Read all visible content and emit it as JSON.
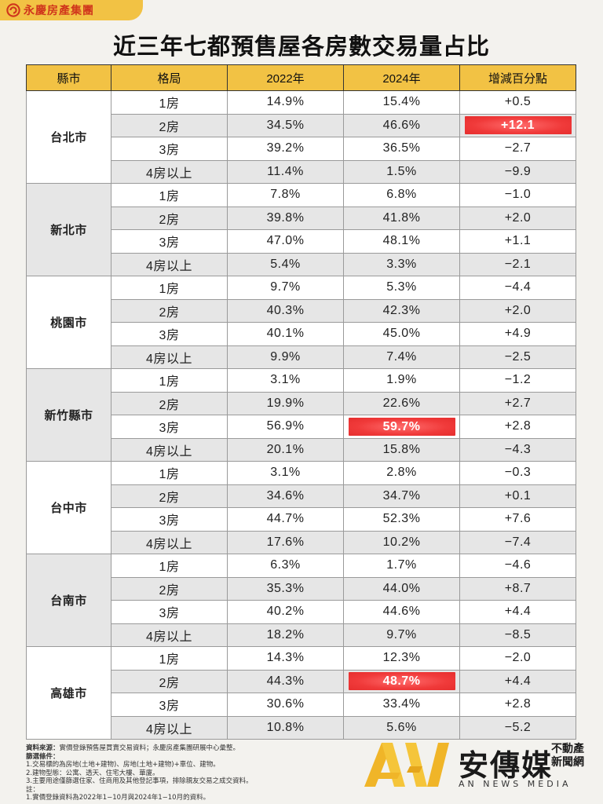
{
  "brand": {
    "name": "永慶房產集團"
  },
  "title": "近三年七都預售屋各房數交易量占比",
  "headers": [
    "縣市",
    "格局",
    "2022年",
    "2024年",
    "增減百分點"
  ],
  "colors": {
    "accent": "#f2c244",
    "highlight": "#f03a3a",
    "brand": "#d0361c"
  },
  "groups": [
    {
      "city": "台北市",
      "rows": [
        {
          "layout": "1房",
          "y2022": "14.9%",
          "y2024": "15.4%",
          "diff": "+0.5"
        },
        {
          "layout": "2房",
          "y2022": "34.5%",
          "y2024": "46.6%",
          "diff": "+12.1"
        },
        {
          "layout": "3房",
          "y2022": "39.2%",
          "y2024": "36.5%",
          "diff": "−2.7"
        },
        {
          "layout": "4房以上",
          "y2022": "11.4%",
          "y2024": "1.5%",
          "diff": "−9.9"
        }
      ]
    },
    {
      "city": "新北市",
      "rows": [
        {
          "layout": "1房",
          "y2022": "7.8%",
          "y2024": "6.8%",
          "diff": "−1.0"
        },
        {
          "layout": "2房",
          "y2022": "39.8%",
          "y2024": "41.8%",
          "diff": "+2.0"
        },
        {
          "layout": "3房",
          "y2022": "47.0%",
          "y2024": "48.1%",
          "diff": "+1.1"
        },
        {
          "layout": "4房以上",
          "y2022": "5.4%",
          "y2024": "3.3%",
          "diff": "−2.1"
        }
      ]
    },
    {
      "city": "桃園市",
      "rows": [
        {
          "layout": "1房",
          "y2022": "9.7%",
          "y2024": "5.3%",
          "diff": "−4.4"
        },
        {
          "layout": "2房",
          "y2022": "40.3%",
          "y2024": "42.3%",
          "diff": "+2.0"
        },
        {
          "layout": "3房",
          "y2022": "40.1%",
          "y2024": "45.0%",
          "diff": "+4.9"
        },
        {
          "layout": "4房以上",
          "y2022": "9.9%",
          "y2024": "7.4%",
          "diff": "−2.5"
        }
      ]
    },
    {
      "city": "新竹縣市",
      "rows": [
        {
          "layout": "1房",
          "y2022": "3.1%",
          "y2024": "1.9%",
          "diff": "−1.2"
        },
        {
          "layout": "2房",
          "y2022": "19.9%",
          "y2024": "22.6%",
          "diff": "+2.7"
        },
        {
          "layout": "3房",
          "y2022": "56.9%",
          "y2024": "59.7%",
          "diff": "+2.8"
        },
        {
          "layout": "4房以上",
          "y2022": "20.1%",
          "y2024": "15.8%",
          "diff": "−4.3"
        }
      ]
    },
    {
      "city": "台中市",
      "rows": [
        {
          "layout": "1房",
          "y2022": "3.1%",
          "y2024": "2.8%",
          "diff": "−0.3"
        },
        {
          "layout": "2房",
          "y2022": "34.6%",
          "y2024": "34.7%",
          "diff": "+0.1"
        },
        {
          "layout": "3房",
          "y2022": "44.7%",
          "y2024": "52.3%",
          "diff": "+7.6"
        },
        {
          "layout": "4房以上",
          "y2022": "17.6%",
          "y2024": "10.2%",
          "diff": "−7.4"
        }
      ]
    },
    {
      "city": "台南市",
      "rows": [
        {
          "layout": "1房",
          "y2022": "6.3%",
          "y2024": "1.7%",
          "diff": "−4.6"
        },
        {
          "layout": "2房",
          "y2022": "35.3%",
          "y2024": "44.0%",
          "diff": "+8.7"
        },
        {
          "layout": "3房",
          "y2022": "40.2%",
          "y2024": "44.6%",
          "diff": "+4.4"
        },
        {
          "layout": "4房以上",
          "y2022": "18.2%",
          "y2024": "9.7%",
          "diff": "−8.5"
        }
      ]
    },
    {
      "city": "高雄市",
      "rows": [
        {
          "layout": "1房",
          "y2022": "14.3%",
          "y2024": "12.3%",
          "diff": "−2.0"
        },
        {
          "layout": "2房",
          "y2022": "44.3%",
          "y2024": "48.7%",
          "diff": "+4.4"
        },
        {
          "layout": "3房",
          "y2022": "30.6%",
          "y2024": "33.4%",
          "diff": "+2.8"
        },
        {
          "layout": "4房以上",
          "y2022": "10.8%",
          "y2024": "5.6%",
          "diff": "−5.2"
        }
      ]
    }
  ],
  "highlights": [
    {
      "group": 0,
      "row": 1,
      "col": "diff"
    },
    {
      "group": 3,
      "row": 2,
      "col": "y2024"
    },
    {
      "group": 6,
      "row": 1,
      "col": "y2024"
    }
  ],
  "footnotes": {
    "source_label": "資料來源：",
    "source_text": "實價登錄預售屋買賣交易資料；永慶房產集團研展中心彙整。",
    "criteria_label": "篩選條件：",
    "criteria": [
      "1.交易標的為房地(土地+建物)、房地(土地+建物)+車位、建物。",
      "2.建物型態：公寓、透天、住宅大樓、華廈。",
      "3.主要用途僅篩選住家、住商用及其他登記事項，排除親友交易之成交資料。"
    ],
    "note_label": "註：",
    "notes": [
      "1.實價登錄資料為2022年1−10月與2024年1−10月的資料。"
    ]
  },
  "media": {
    "name": "安傳媒",
    "sub": "不動產新聞網",
    "english": "AN NEWS MEDIA"
  }
}
